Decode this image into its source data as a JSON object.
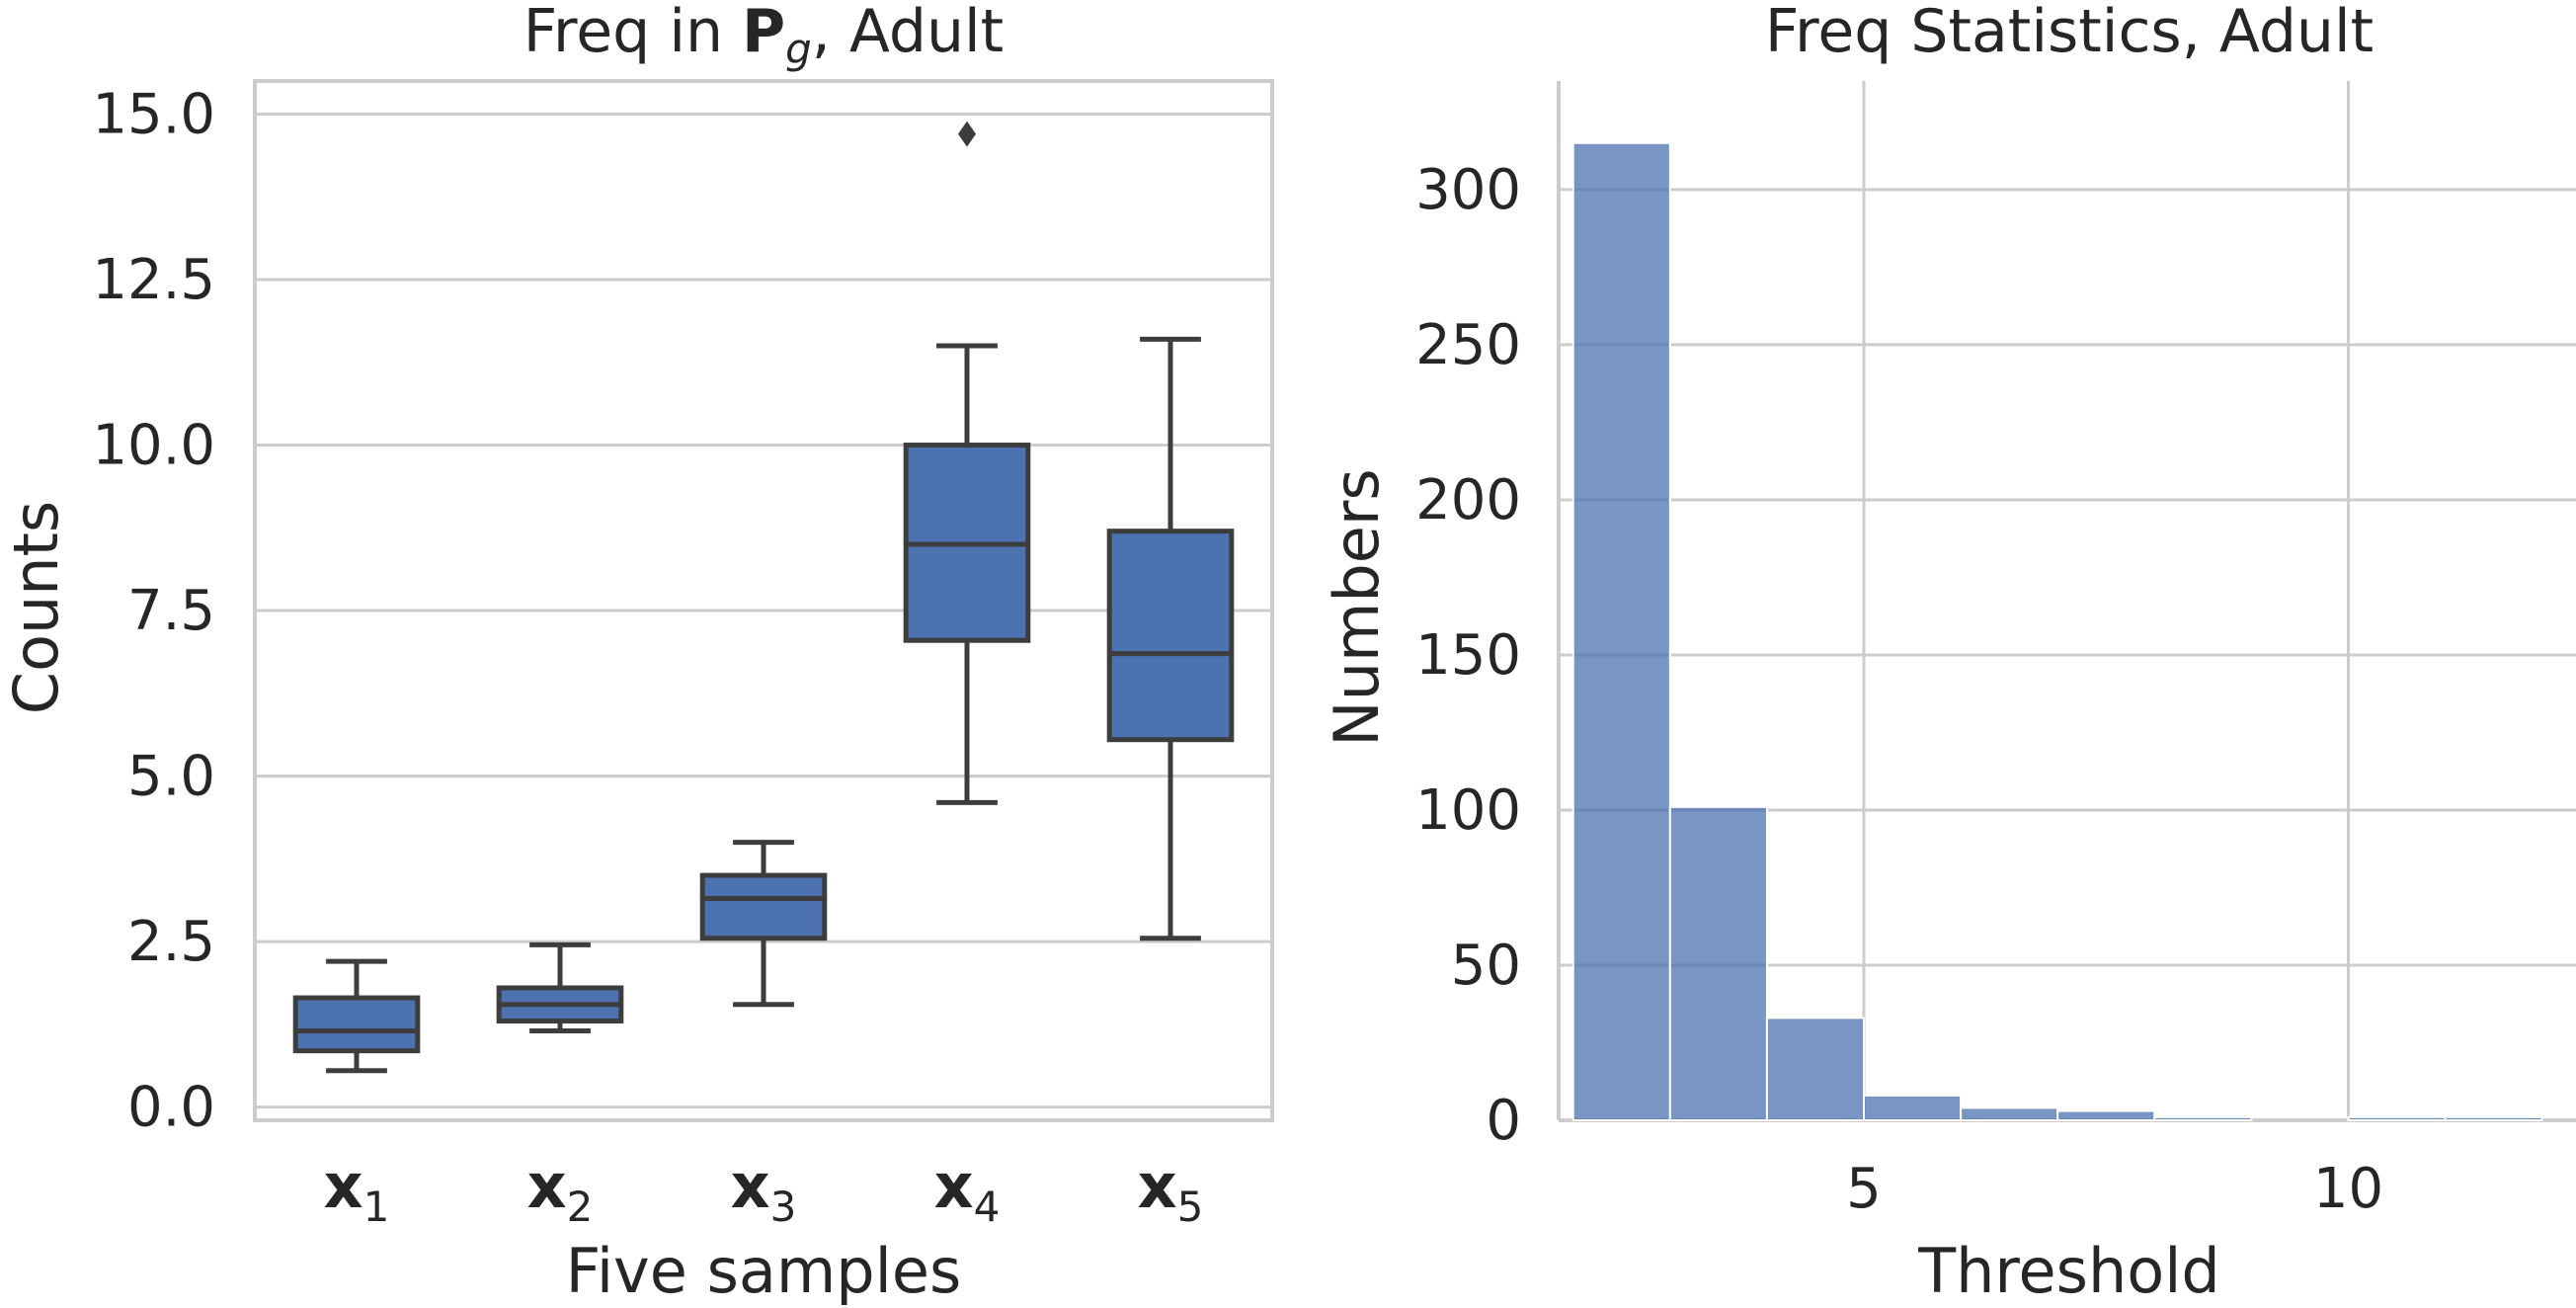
{
  "chart_data": [
    {
      "type": "box",
      "title": "Freq in P_g, Adult",
      "title_parts": {
        "prefix": "Freq in ",
        "bold": "P",
        "subscript": "g",
        "suffix": ", Adult"
      },
      "xlabel": "Five samples",
      "ylabel": "Counts",
      "ylim": [
        -0.2,
        15.5
      ],
      "yticks": [
        0.0,
        2.5,
        5.0,
        7.5,
        10.0,
        12.5,
        15.0
      ],
      "ytick_labels": [
        "0.0",
        "2.5",
        "5.0",
        "7.5",
        "10.0",
        "12.5",
        "15.0"
      ],
      "grid": true,
      "color": "#4c72b0",
      "categories": [
        {
          "base": "x",
          "sub": "1"
        },
        {
          "base": "x",
          "sub": "2"
        },
        {
          "base": "x",
          "sub": "3"
        },
        {
          "base": "x",
          "sub": "4"
        },
        {
          "base": "x",
          "sub": "5"
        }
      ],
      "boxes": [
        {
          "whisker_low": 0.55,
          "q1": 0.85,
          "median": 1.15,
          "q3": 1.65,
          "whisker_high": 2.2,
          "outliers": []
        },
        {
          "whisker_low": 1.15,
          "q1": 1.3,
          "median": 1.55,
          "q3": 1.8,
          "whisker_high": 2.45,
          "outliers": []
        },
        {
          "whisker_low": 1.55,
          "q1": 2.55,
          "median": 3.15,
          "q3": 3.5,
          "whisker_high": 4.0,
          "outliers": []
        },
        {
          "whisker_low": 4.6,
          "q1": 7.05,
          "median": 8.5,
          "q3": 10.0,
          "whisker_high": 11.5,
          "outliers": [
            14.7
          ]
        },
        {
          "whisker_low": 2.55,
          "q1": 5.55,
          "median": 6.85,
          "q3": 8.7,
          "whisker_high": 11.6,
          "outliers": []
        }
      ]
    },
    {
      "type": "bar",
      "subtype": "histogram",
      "title": "Freq Statistics, Adult",
      "xlabel": "Threshold",
      "ylabel": "Numbers",
      "xlim": [
        1.85,
        12.35
      ],
      "ylim": [
        0,
        335
      ],
      "xticks": [
        5,
        10
      ],
      "xtick_labels": [
        "5",
        "10"
      ],
      "yticks": [
        0,
        50,
        100,
        150,
        200,
        250,
        300
      ],
      "ytick_labels": [
        "0",
        "50",
        "100",
        "150",
        "200",
        "250",
        "300"
      ],
      "grid": true,
      "color": "#4c72b0",
      "bin_edges": [
        2,
        3,
        4,
        5,
        6,
        7,
        8,
        9,
        10,
        11,
        12
      ],
      "values": [
        315,
        101,
        33,
        8,
        4,
        3,
        1,
        0,
        1,
        1
      ]
    }
  ]
}
